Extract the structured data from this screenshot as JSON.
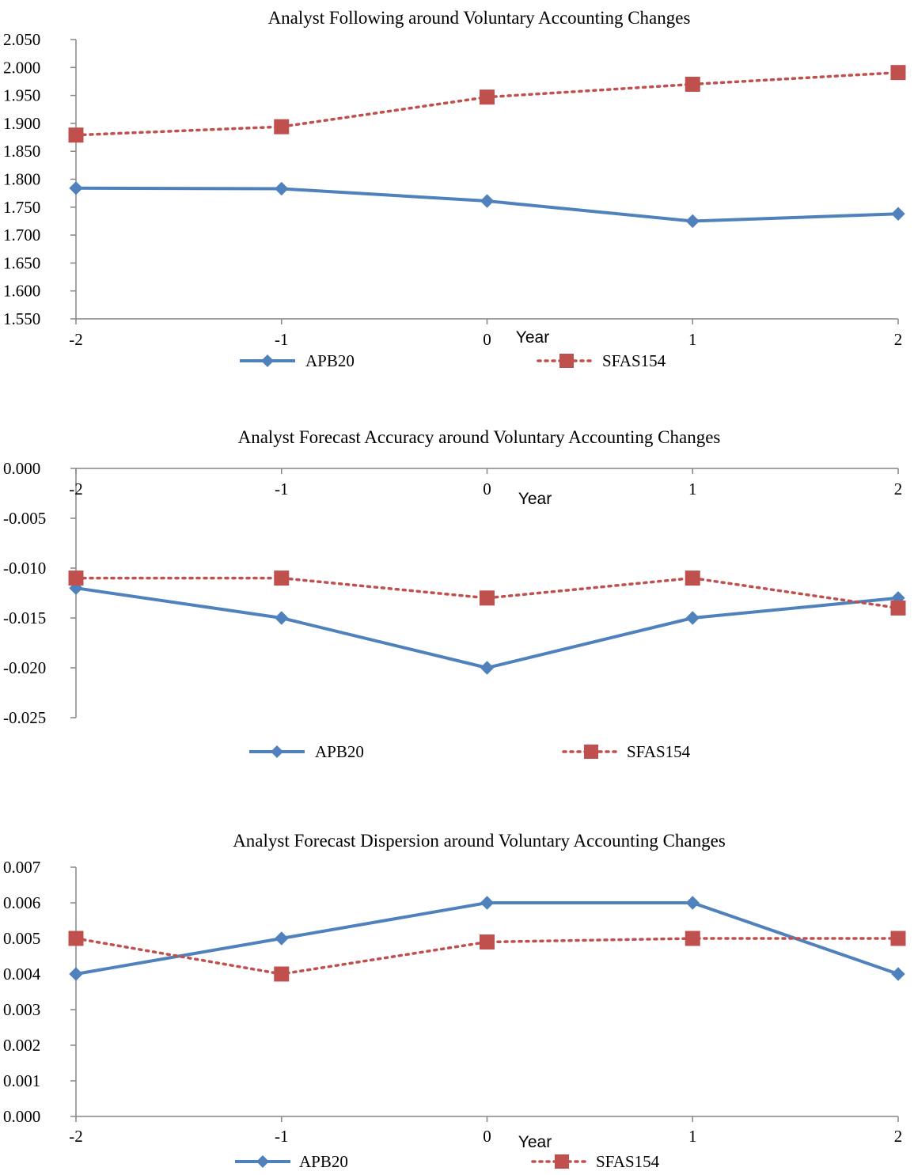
{
  "chart_data": [
    {
      "type": "line",
      "title": "Analyst Following around Voluntary Accounting Changes",
      "xlabel": "Year",
      "ylabel": "",
      "x": [
        "-2",
        "-1",
        "0",
        "1",
        "2"
      ],
      "ylim": [
        1.55,
        2.05
      ],
      "yticks": [
        "1.550",
        "1.600",
        "1.650",
        "1.700",
        "1.750",
        "1.800",
        "1.850",
        "1.900",
        "1.950",
        "2.000",
        "2.050"
      ],
      "grid": false,
      "legend_position": "bottom",
      "series": [
        {
          "name": "APB20",
          "values": [
            1.784,
            1.783,
            1.761,
            1.725,
            1.738
          ],
          "color": "#4F81BD",
          "style": "solid",
          "marker": "diamond"
        },
        {
          "name": "SFAS154",
          "values": [
            1.879,
            1.894,
            1.947,
            1.97,
            1.991
          ],
          "color": "#C0504D",
          "style": "dotted",
          "marker": "square"
        }
      ]
    },
    {
      "type": "line",
      "title": "Analyst Forecast Accuracy around Voluntary Accounting Changes",
      "xlabel": "Year",
      "ylabel": "",
      "x": [
        "-2",
        "-1",
        "0",
        "1",
        "2"
      ],
      "ylim": [
        -0.025,
        0
      ],
      "yticks": [
        "-0.025",
        "-0.020",
        "-0.015",
        "-0.010",
        "-0.005",
        "0.000"
      ],
      "grid": false,
      "legend_position": "bottom",
      "series": [
        {
          "name": "APB20",
          "values": [
            -0.012,
            -0.015,
            -0.02,
            -0.015,
            -0.013
          ],
          "color": "#4F81BD",
          "style": "solid",
          "marker": "diamond"
        },
        {
          "name": "SFAS154",
          "values": [
            -0.011,
            -0.011,
            -0.013,
            -0.011,
            -0.014
          ],
          "color": "#C0504D",
          "style": "dotted",
          "marker": "square"
        }
      ]
    },
    {
      "type": "line",
      "title": "Analyst Forecast Dispersion around Voluntary Accounting Changes",
      "xlabel": "Year",
      "ylabel": "",
      "x": [
        "-2",
        "-1",
        "0",
        "1",
        "2"
      ],
      "ylim": [
        0,
        0.007
      ],
      "yticks": [
        "0.000",
        "0.001",
        "0.002",
        "0.003",
        "0.004",
        "0.005",
        "0.006",
        "0.007"
      ],
      "grid": false,
      "legend_position": "bottom",
      "series": [
        {
          "name": "APB20",
          "values": [
            0.004,
            0.005,
            0.006,
            0.006,
            0.004
          ],
          "color": "#4F81BD",
          "style": "solid",
          "marker": "diamond"
        },
        {
          "name": "SFAS154",
          "values": [
            0.005,
            0.004,
            0.0049,
            0.005,
            0.005
          ],
          "color": "#C0504D",
          "style": "dotted",
          "marker": "square"
        }
      ]
    }
  ]
}
